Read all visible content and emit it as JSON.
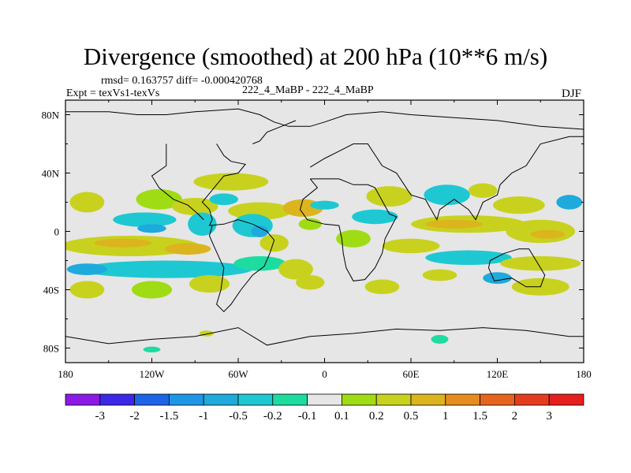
{
  "chart_data": {
    "type": "heatmap",
    "title": "Divergence (smoothed) at 200 hPa (10**6 m/s)",
    "stats_text": "rmsd= 0.163757 diff= -0.000420768",
    "experiment_text": "Expt = texVs1-texVs",
    "case_text": "222_4_MaBP - 222_4_MaBP",
    "season": "DJF",
    "x_range": [
      -180,
      180
    ],
    "y_range": [
      -90,
      90
    ],
    "x_ticks": [
      {
        "value": -180,
        "label": "180"
      },
      {
        "value": -120,
        "label": "120W"
      },
      {
        "value": -60,
        "label": "60W"
      },
      {
        "value": 0,
        "label": "0"
      },
      {
        "value": 60,
        "label": "60E"
      },
      {
        "value": 120,
        "label": "120E"
      },
      {
        "value": 180,
        "label": "180"
      }
    ],
    "y_ticks": [
      {
        "value": 80,
        "label": "80N"
      },
      {
        "value": 40,
        "label": "40N"
      },
      {
        "value": 0,
        "label": "0"
      },
      {
        "value": -40,
        "label": "40S"
      },
      {
        "value": -80,
        "label": "80S"
      }
    ],
    "colorbar": {
      "colors": [
        "#8c19e6",
        "#3c28e6",
        "#1e64e6",
        "#1e96e6",
        "#1eaadc",
        "#1ec8d2",
        "#1edca0",
        "#e6e6e6",
        "#a0dc14",
        "#c8d21e",
        "#dcb41e",
        "#e68c1e",
        "#e6641e",
        "#e63c1e",
        "#e61e1e"
      ],
      "levels": [
        "-3",
        "-2",
        "-1.5",
        "-1",
        "-0.5",
        "-0.2",
        "-0.1",
        "0.1",
        "0.2",
        "0.5",
        "1",
        "1.5",
        "2",
        "3"
      ]
    },
    "regions": [
      {
        "lon": 170,
        "lat": 20,
        "rx": 9,
        "ry": 5,
        "class": 4
      },
      {
        "lon": -165,
        "lat": 20,
        "rx": 12,
        "ry": 7,
        "class": 9
      },
      {
        "lon": -115,
        "lat": 22,
        "rx": 16,
        "ry": 7,
        "class": 8
      },
      {
        "lon": -90,
        "lat": 17,
        "rx": 16,
        "ry": 6,
        "class": 9
      },
      {
        "lon": -125,
        "lat": 8,
        "rx": 22,
        "ry": 5,
        "class": 5
      },
      {
        "lon": -120,
        "lat": 2,
        "rx": 10,
        "ry": 3,
        "class": 4
      },
      {
        "lon": -85,
        "lat": 5,
        "rx": 10,
        "ry": 8,
        "class": 5
      },
      {
        "lon": -135,
        "lat": -10,
        "rx": 48,
        "ry": 7,
        "class": 9
      },
      {
        "lon": -140,
        "lat": -8,
        "rx": 20,
        "ry": 3,
        "class": 10
      },
      {
        "lon": -95,
        "lat": -12,
        "rx": 16,
        "ry": 4,
        "class": 10
      },
      {
        "lon": -110,
        "lat": -26,
        "rx": 60,
        "ry": 6,
        "class": 5
      },
      {
        "lon": -165,
        "lat": -26,
        "rx": 14,
        "ry": 4,
        "class": 4
      },
      {
        "lon": -165,
        "lat": -40,
        "rx": 12,
        "ry": 6,
        "class": 9
      },
      {
        "lon": -120,
        "lat": -40,
        "rx": 14,
        "ry": 6,
        "class": 8
      },
      {
        "lon": -80,
        "lat": -36,
        "rx": 14,
        "ry": 6,
        "class": 9
      },
      {
        "lon": -120,
        "lat": -81,
        "rx": 6,
        "ry": 2,
        "class": 6
      },
      {
        "lon": -82,
        "lat": -70,
        "rx": 5,
        "ry": 2,
        "class": 9
      },
      {
        "lon": -65,
        "lat": 34,
        "rx": 26,
        "ry": 6,
        "class": 9
      },
      {
        "lon": -70,
        "lat": 22,
        "rx": 10,
        "ry": 4,
        "class": 5
      },
      {
        "lon": -45,
        "lat": 14,
        "rx": 22,
        "ry": 6,
        "class": 9
      },
      {
        "lon": -50,
        "lat": 4,
        "rx": 14,
        "ry": 8,
        "class": 5
      },
      {
        "lon": -45,
        "lat": 0,
        "rx": 6,
        "ry": 4,
        "class": 4
      },
      {
        "lon": -35,
        "lat": -8,
        "rx": 10,
        "ry": 6,
        "class": 9
      },
      {
        "lon": -45,
        "lat": -22,
        "rx": 18,
        "ry": 5,
        "class": 6
      },
      {
        "lon": -15,
        "lat": 16,
        "rx": 14,
        "ry": 6,
        "class": 10
      },
      {
        "lon": -10,
        "lat": 5,
        "rx": 8,
        "ry": 4,
        "class": 8
      },
      {
        "lon": -20,
        "lat": -26,
        "rx": 12,
        "ry": 7,
        "class": 9
      },
      {
        "lon": -10,
        "lat": -35,
        "rx": 10,
        "ry": 5,
        "class": 9
      },
      {
        "lon": 0,
        "lat": 18,
        "rx": 10,
        "ry": 3,
        "class": 5
      },
      {
        "lon": 35,
        "lat": 10,
        "rx": 16,
        "ry": 5,
        "class": 5
      },
      {
        "lon": 20,
        "lat": -5,
        "rx": 12,
        "ry": 6,
        "class": 8
      },
      {
        "lon": 45,
        "lat": 24,
        "rx": 16,
        "ry": 7,
        "class": 9
      },
      {
        "lon": 85,
        "lat": 25,
        "rx": 16,
        "ry": 7,
        "class": 5
      },
      {
        "lon": 110,
        "lat": 28,
        "rx": 10,
        "ry": 5,
        "class": 9
      },
      {
        "lon": 135,
        "lat": 18,
        "rx": 18,
        "ry": 6,
        "class": 9
      },
      {
        "lon": 100,
        "lat": 5,
        "rx": 40,
        "ry": 6,
        "class": 9
      },
      {
        "lon": 90,
        "lat": 5,
        "rx": 20,
        "ry": 3,
        "class": 10
      },
      {
        "lon": 150,
        "lat": 0,
        "rx": 24,
        "ry": 8,
        "class": 9
      },
      {
        "lon": 155,
        "lat": -2,
        "rx": 12,
        "ry": 3,
        "class": 10
      },
      {
        "lon": 60,
        "lat": -10,
        "rx": 20,
        "ry": 5,
        "class": 9
      },
      {
        "lon": 100,
        "lat": -18,
        "rx": 30,
        "ry": 5,
        "class": 5
      },
      {
        "lon": 150,
        "lat": -22,
        "rx": 28,
        "ry": 5,
        "class": 9
      },
      {
        "lon": 40,
        "lat": -38,
        "rx": 12,
        "ry": 5,
        "class": 9
      },
      {
        "lon": 80,
        "lat": -30,
        "rx": 12,
        "ry": 4,
        "class": 9
      },
      {
        "lon": 150,
        "lat": -38,
        "rx": 20,
        "ry": 6,
        "class": 9
      },
      {
        "lon": 120,
        "lat": -32,
        "rx": 10,
        "ry": 4,
        "class": 4
      },
      {
        "lon": 80,
        "lat": -74,
        "rx": 6,
        "ry": 3,
        "class": 6
      }
    ]
  }
}
